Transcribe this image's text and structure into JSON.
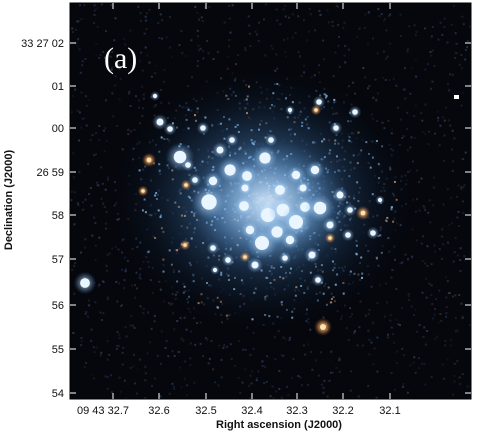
{
  "panel_label": "(a)",
  "x_axis": {
    "title": "Right ascension (J2000)",
    "ticks": [
      "09 43 32.7",
      "32.6",
      "32.5",
      "32.4",
      "32.3",
      "32.2",
      "32.1"
    ]
  },
  "y_axis": {
    "title": "Declination (J2000)",
    "ticks": [
      "33 27 02",
      "01",
      "00",
      "26 59",
      "58",
      "57",
      "56",
      "55",
      "54"
    ]
  },
  "colors": {
    "sky_background": "#05070d",
    "cluster_core": "#cfe8ff",
    "cluster_halo": "#4f8fd0",
    "red_star": "#ffb060"
  }
}
